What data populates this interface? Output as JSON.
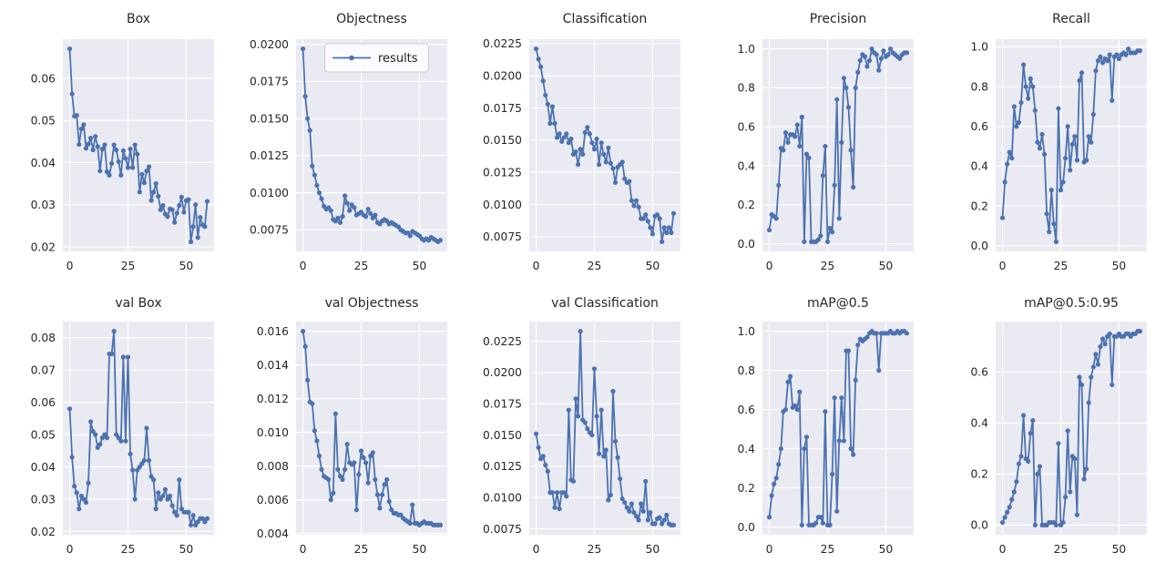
{
  "figure": {
    "background": "#ffffff",
    "axes_background": "#eaeaf2",
    "grid_color": "#ffffff",
    "line_color": "#4c72b0",
    "text_color": "#262626",
    "legend_label": "results"
  },
  "chart_data": [
    {
      "type": "line",
      "title": "Box",
      "series_name": "results",
      "show_legend": false,
      "xticks": [
        0,
        25,
        50
      ],
      "yticks": {
        "values": [
          0.02,
          0.03,
          0.04,
          0.05,
          0.06
        ],
        "labels": [
          "0.02",
          "0.03",
          "0.04",
          "0.05",
          "0.06"
        ]
      },
      "values": [
        0.067,
        0.0563,
        0.051,
        0.0512,
        0.0443,
        0.048,
        0.049,
        0.0434,
        0.0444,
        0.0458,
        0.043,
        0.0462,
        0.0438,
        0.038,
        0.0432,
        0.0442,
        0.0378,
        0.037,
        0.0398,
        0.0442,
        0.043,
        0.0402,
        0.037,
        0.0428,
        0.041,
        0.0388,
        0.0432,
        0.0388,
        0.0442,
        0.042,
        0.033,
        0.0372,
        0.0352,
        0.038,
        0.039,
        0.031,
        0.033,
        0.035,
        0.032,
        0.0288,
        0.0298,
        0.0278,
        0.0272,
        0.029,
        0.0288,
        0.0258,
        0.028,
        0.0298,
        0.0318,
        0.0282,
        0.031,
        0.0312,
        0.0212,
        0.0248,
        0.03,
        0.0222,
        0.027,
        0.0252,
        0.0248,
        0.0308
      ]
    },
    {
      "type": "line",
      "title": "Objectness",
      "series_name": "results",
      "show_legend": true,
      "xticks": [
        0,
        25,
        50
      ],
      "yticks": {
        "values": [
          0.0075,
          0.01,
          0.0125,
          0.015,
          0.0175,
          0.02
        ],
        "labels": [
          "0.0075",
          "0.0100",
          "0.0125",
          "0.0150",
          "0.0175",
          "0.0200"
        ]
      },
      "values": [
        0.0197,
        0.0165,
        0.015,
        0.0142,
        0.0118,
        0.0112,
        0.0105,
        0.01,
        0.0096,
        0.0091,
        0.0089,
        0.009,
        0.0088,
        0.0082,
        0.0081,
        0.0083,
        0.008,
        0.0084,
        0.0098,
        0.0093,
        0.0088,
        0.0092,
        0.009,
        0.0085,
        0.0086,
        0.0087,
        0.0085,
        0.0084,
        0.0089,
        0.0086,
        0.0083,
        0.0085,
        0.008,
        0.0079,
        0.0081,
        0.0082,
        0.0081,
        0.0079,
        0.008,
        0.0079,
        0.0078,
        0.0077,
        0.0075,
        0.0074,
        0.0073,
        0.0073,
        0.0071,
        0.0074,
        0.0073,
        0.0072,
        0.0071,
        0.0069,
        0.0068,
        0.0069,
        0.0068,
        0.007,
        0.0069,
        0.0068,
        0.0067,
        0.0068
      ]
    },
    {
      "type": "line",
      "title": "Classification",
      "series_name": "results",
      "show_legend": false,
      "xticks": [
        0,
        25,
        50
      ],
      "yticks": {
        "values": [
          0.0075,
          0.01,
          0.0125,
          0.015,
          0.0175,
          0.02,
          0.0225
        ],
        "labels": [
          "0.0075",
          "0.0100",
          "0.0125",
          "0.0150",
          "0.0175",
          "0.0200",
          "0.0225"
        ]
      },
      "values": [
        0.0221,
        0.0213,
        0.0207,
        0.0196,
        0.0185,
        0.0178,
        0.0163,
        0.0176,
        0.0163,
        0.0152,
        0.0155,
        0.0149,
        0.0152,
        0.0155,
        0.0148,
        0.0151,
        0.0139,
        0.0141,
        0.0131,
        0.0143,
        0.0139,
        0.0156,
        0.016,
        0.0155,
        0.0148,
        0.0143,
        0.0151,
        0.0131,
        0.0148,
        0.0139,
        0.0133,
        0.0144,
        0.0132,
        0.0128,
        0.0117,
        0.0129,
        0.0131,
        0.0133,
        0.012,
        0.0117,
        0.0118,
        0.0103,
        0.0099,
        0.0103,
        0.0098,
        0.0089,
        0.0089,
        0.0092,
        0.0087,
        0.0082,
        0.0077,
        0.0091,
        0.0092,
        0.0089,
        0.0071,
        0.0082,
        0.0078,
        0.0082,
        0.0078,
        0.0093
      ]
    },
    {
      "type": "line",
      "title": "Precision",
      "series_name": "results",
      "show_legend": false,
      "xticks": [
        0,
        25,
        50
      ],
      "yticks": {
        "values": [
          0.0,
          0.2,
          0.4,
          0.6,
          0.8,
          1.0
        ],
        "labels": [
          "0.0",
          "0.2",
          "0.4",
          "0.6",
          "0.8",
          "1.0"
        ]
      },
      "values": [
        0.07,
        0.15,
        0.14,
        0.13,
        0.3,
        0.49,
        0.48,
        0.57,
        0.52,
        0.56,
        0.56,
        0.55,
        0.61,
        0.5,
        0.65,
        0.01,
        0.46,
        0.44,
        0.01,
        0.01,
        0.01,
        0.02,
        0.04,
        0.35,
        0.5,
        0.01,
        0.08,
        0.06,
        0.3,
        0.74,
        0.13,
        0.52,
        0.85,
        0.8,
        0.7,
        0.48,
        0.29,
        0.8,
        0.88,
        0.94,
        0.97,
        0.96,
        0.91,
        0.94,
        1.0,
        0.98,
        0.97,
        0.89,
        0.95,
        0.99,
        0.96,
        0.97,
        1.0,
        0.98,
        0.97,
        0.96,
        0.95,
        0.97,
        0.98,
        0.98
      ]
    },
    {
      "type": "line",
      "title": "Recall",
      "series_name": "results",
      "show_legend": false,
      "xticks": [
        0,
        25,
        50
      ],
      "yticks": {
        "values": [
          0.0,
          0.2,
          0.4,
          0.6,
          0.8,
          1.0
        ],
        "labels": [
          "0.0",
          "0.2",
          "0.4",
          "0.6",
          "0.8",
          "1.0"
        ]
      },
      "values": [
        0.14,
        0.32,
        0.41,
        0.47,
        0.44,
        0.7,
        0.6,
        0.62,
        0.72,
        0.91,
        0.8,
        0.74,
        0.84,
        0.8,
        0.68,
        0.52,
        0.49,
        0.56,
        0.46,
        0.16,
        0.07,
        0.28,
        0.11,
        0.02,
        0.69,
        0.28,
        0.32,
        0.44,
        0.6,
        0.38,
        0.51,
        0.55,
        0.43,
        0.83,
        0.87,
        0.42,
        0.43,
        0.55,
        0.52,
        0.66,
        0.88,
        0.93,
        0.95,
        0.92,
        0.94,
        0.93,
        0.96,
        0.73,
        0.95,
        0.96,
        0.94,
        0.96,
        0.97,
        0.96,
        0.99,
        0.97,
        0.97,
        0.97,
        0.98,
        0.98
      ]
    },
    {
      "type": "line",
      "title": "val Box",
      "series_name": "results",
      "show_legend": false,
      "xticks": [
        0,
        25,
        50
      ],
      "yticks": {
        "values": [
          0.02,
          0.03,
          0.04,
          0.05,
          0.06,
          0.07,
          0.08
        ],
        "labels": [
          "0.02",
          "0.03",
          "0.04",
          "0.05",
          "0.06",
          "0.07",
          "0.08"
        ]
      },
      "values": [
        0.058,
        0.043,
        0.034,
        0.032,
        0.027,
        0.031,
        0.03,
        0.029,
        0.035,
        0.054,
        0.051,
        0.05,
        0.046,
        0.047,
        0.049,
        0.05,
        0.049,
        0.075,
        0.075,
        0.082,
        0.05,
        0.049,
        0.048,
        0.074,
        0.048,
        0.074,
        0.044,
        0.039,
        0.03,
        0.039,
        0.04,
        0.041,
        0.042,
        0.052,
        0.042,
        0.037,
        0.036,
        0.027,
        0.032,
        0.03,
        0.031,
        0.033,
        0.03,
        0.031,
        0.028,
        0.026,
        0.025,
        0.036,
        0.027,
        0.026,
        0.026,
        0.026,
        0.022,
        0.025,
        0.022,
        0.023,
        0.024,
        0.024,
        0.023,
        0.024
      ]
    },
    {
      "type": "line",
      "title": "val Objectness",
      "series_name": "results",
      "show_legend": false,
      "xticks": [
        0,
        25,
        50
      ],
      "yticks": {
        "values": [
          0.004,
          0.006,
          0.008,
          0.01,
          0.012,
          0.014,
          0.016
        ],
        "labels": [
          "0.004",
          "0.006",
          "0.008",
          "0.010",
          "0.012",
          "0.014",
          "0.016"
        ]
      },
      "values": [
        0.016,
        0.0151,
        0.0131,
        0.0118,
        0.0117,
        0.0101,
        0.0095,
        0.0086,
        0.0078,
        0.0074,
        0.0073,
        0.0072,
        0.006,
        0.0064,
        0.0111,
        0.0078,
        0.0074,
        0.0072,
        0.0078,
        0.0093,
        0.0082,
        0.0081,
        0.0082,
        0.0054,
        0.0075,
        0.0089,
        0.0085,
        0.0082,
        0.007,
        0.0086,
        0.0088,
        0.0072,
        0.0063,
        0.0055,
        0.0063,
        0.0069,
        0.0072,
        0.0059,
        0.0054,
        0.0052,
        0.0052,
        0.0051,
        0.0051,
        0.0049,
        0.0048,
        0.0047,
        0.0046,
        0.0057,
        0.0046,
        0.0046,
        0.0045,
        0.0046,
        0.0047,
        0.0046,
        0.0046,
        0.0046,
        0.0045,
        0.0045,
        0.0045,
        0.0045
      ]
    },
    {
      "type": "line",
      "title": "val Classification",
      "series_name": "results",
      "show_legend": false,
      "xticks": [
        0,
        25,
        50
      ],
      "yticks": {
        "values": [
          0.0075,
          0.01,
          0.0125,
          0.015,
          0.0175,
          0.02,
          0.0225
        ],
        "labels": [
          "0.0075",
          "0.0100",
          "0.0125",
          "0.0150",
          "0.0175",
          "0.0200",
          "0.0225"
        ]
      },
      "values": [
        0.0151,
        0.014,
        0.0131,
        0.0133,
        0.0126,
        0.0121,
        0.0104,
        0.0104,
        0.0092,
        0.0104,
        0.0091,
        0.0104,
        0.0104,
        0.0101,
        0.017,
        0.0114,
        0.0113,
        0.0179,
        0.0165,
        0.0233,
        0.0162,
        0.016,
        0.0155,
        0.0152,
        0.015,
        0.0203,
        0.0165,
        0.0135,
        0.017,
        0.0133,
        0.0138,
        0.0098,
        0.0102,
        0.0185,
        0.0145,
        0.0132,
        0.0115,
        0.0099,
        0.0096,
        0.0092,
        0.0089,
        0.0095,
        0.0088,
        0.0085,
        0.0082,
        0.0095,
        0.0089,
        0.0113,
        0.0082,
        0.0088,
        0.0079,
        0.0079,
        0.0083,
        0.0084,
        0.0079,
        0.0082,
        0.0086,
        0.0079,
        0.0078,
        0.0078
      ]
    },
    {
      "type": "line",
      "title": "mAP@0.5",
      "series_name": "results",
      "show_legend": false,
      "xticks": [
        0,
        25,
        50
      ],
      "yticks": {
        "values": [
          0.0,
          0.2,
          0.4,
          0.6,
          0.8,
          1.0
        ],
        "labels": [
          "0.0",
          "0.2",
          "0.4",
          "0.6",
          "0.8",
          "1.0"
        ]
      },
      "values": [
        0.05,
        0.16,
        0.22,
        0.25,
        0.32,
        0.4,
        0.59,
        0.6,
        0.74,
        0.77,
        0.61,
        0.62,
        0.6,
        0.69,
        0.01,
        0.4,
        0.46,
        0.01,
        0.01,
        0.01,
        0.02,
        0.05,
        0.05,
        0.02,
        0.59,
        0.01,
        0.01,
        0.27,
        0.66,
        0.08,
        0.44,
        0.66,
        0.44,
        0.9,
        0.9,
        0.4,
        0.37,
        0.75,
        0.93,
        0.96,
        0.95,
        0.96,
        0.97,
        0.99,
        1.0,
        0.99,
        0.99,
        0.8,
        0.99,
        0.99,
        0.99,
        0.99,
        1.0,
        0.99,
        0.99,
        1.0,
        0.99,
        1.0,
        1.0,
        0.99
      ]
    },
    {
      "type": "line",
      "title": "mAP@0.5:0.95",
      "series_name": "results",
      "show_legend": false,
      "xticks": [
        0,
        25,
        50
      ],
      "yticks": {
        "values": [
          0.0,
          0.2,
          0.4,
          0.6
        ],
        "labels": [
          "0.0",
          "0.2",
          "0.4",
          "0.6"
        ]
      },
      "values": [
        0.01,
        0.03,
        0.05,
        0.07,
        0.1,
        0.13,
        0.17,
        0.24,
        0.27,
        0.43,
        0.26,
        0.25,
        0.36,
        0.41,
        0.0,
        0.2,
        0.23,
        0.0,
        0.0,
        0.0,
        0.01,
        0.01,
        0.01,
        0.0,
        0.32,
        0.0,
        0.01,
        0.11,
        0.37,
        0.13,
        0.27,
        0.26,
        0.04,
        0.58,
        0.55,
        0.18,
        0.22,
        0.48,
        0.58,
        0.62,
        0.67,
        0.63,
        0.7,
        0.73,
        0.71,
        0.74,
        0.75,
        0.55,
        0.74,
        0.74,
        0.75,
        0.74,
        0.74,
        0.75,
        0.75,
        0.74,
        0.75,
        0.75,
        0.76,
        0.76
      ]
    }
  ]
}
